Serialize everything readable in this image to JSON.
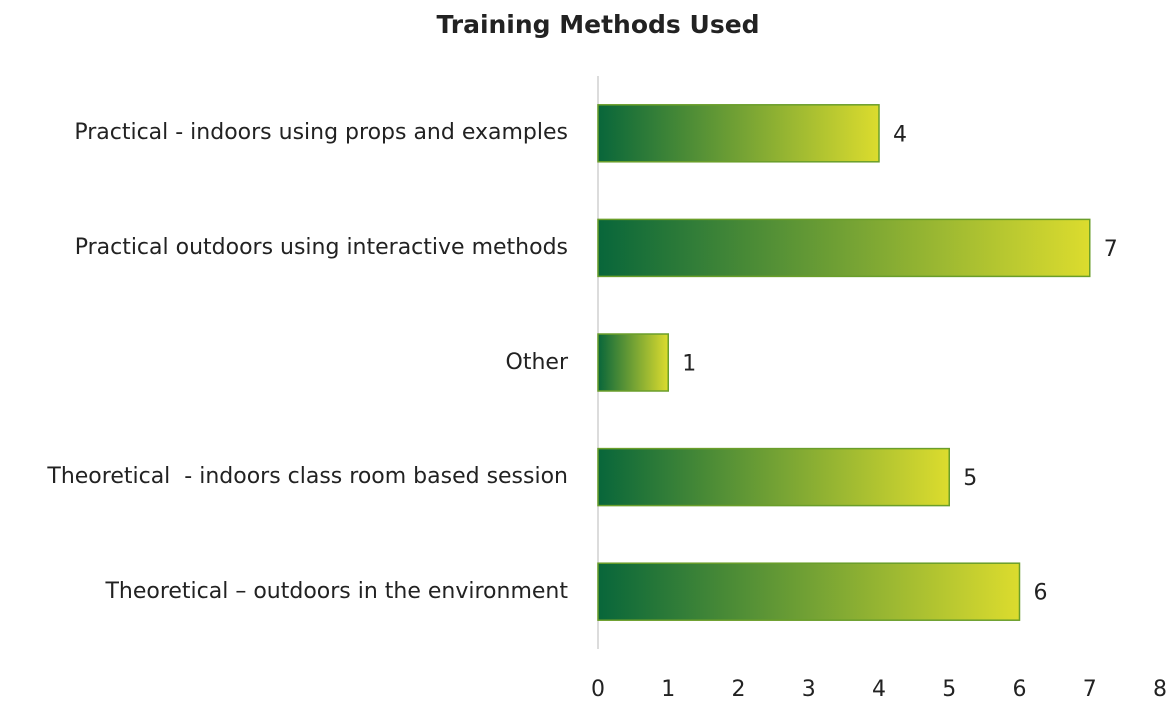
{
  "chart_data": {
    "type": "barh",
    "title": "Training Methods Used",
    "categories": [
      "Practical - indoors using props and examples",
      "Practical outdoors using interactive methods",
      "Other",
      "Theoretical  - indoors class room based session",
      "Theoretical – outdoors in the environment"
    ],
    "values": [
      4,
      7,
      1,
      5,
      6
    ],
    "gradient": [
      "#08663a",
      "#dcdc2e"
    ],
    "edge_color": "#6a9e2a",
    "xlim": [
      0,
      8
    ],
    "xticks": [
      0,
      1,
      2,
      3,
      4,
      5,
      6,
      7,
      8
    ],
    "grid": false
  }
}
